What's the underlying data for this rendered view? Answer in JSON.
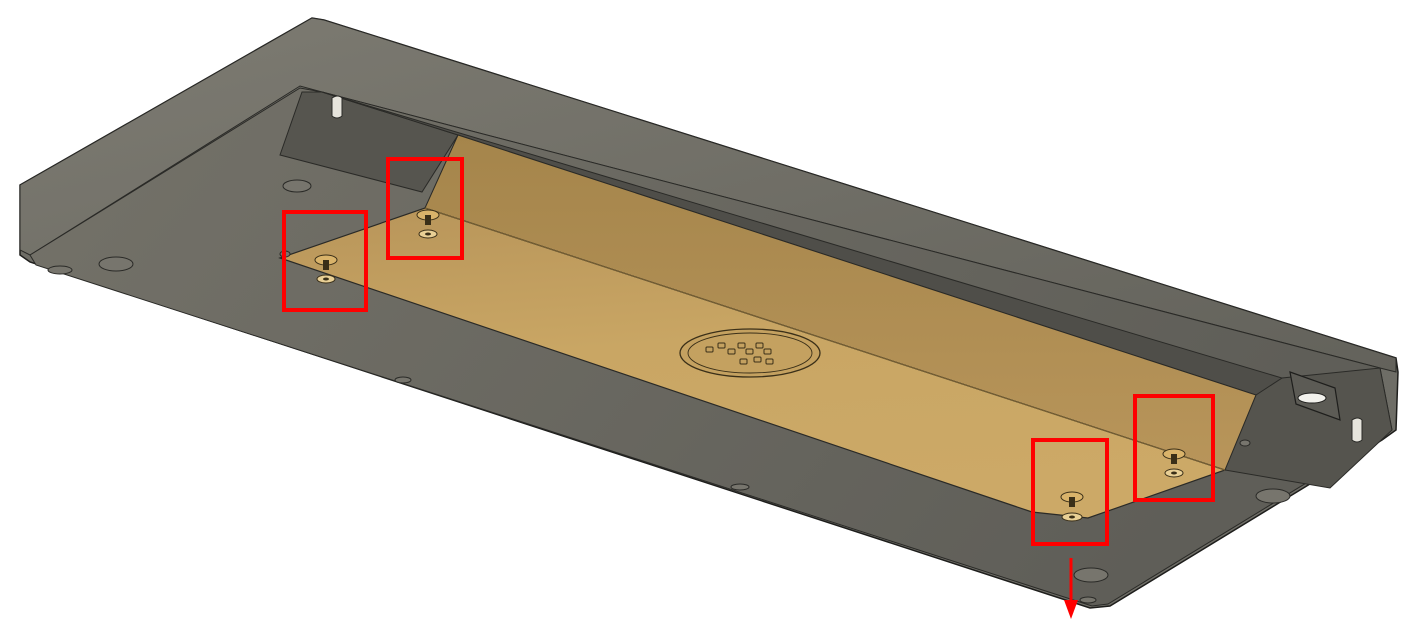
{
  "colors": {
    "background": "#ffffff",
    "case_body": "#6c6b64",
    "case_top_rim": "#7a786f",
    "case_inner_wall": "#5a5953",
    "case_edge_line": "#1e1e1c",
    "plate_light": "#c9a664",
    "plate_dark": "#ad8c4e",
    "screw_gold": "#d9b36a",
    "highlight_box": "#ff0000",
    "direction_arrow": "#ff0000"
  },
  "icons": {
    "screw": "countersunk-screw-icon",
    "logo": "circular-logo-emboss-icon",
    "usb_port": "usb-cutout-icon",
    "arrow": "arrow-down-icon"
  },
  "highlighted_screws": [
    {
      "id": "front-left"
    },
    {
      "id": "rear-left"
    },
    {
      "id": "front-right"
    },
    {
      "id": "rear-right"
    }
  ]
}
